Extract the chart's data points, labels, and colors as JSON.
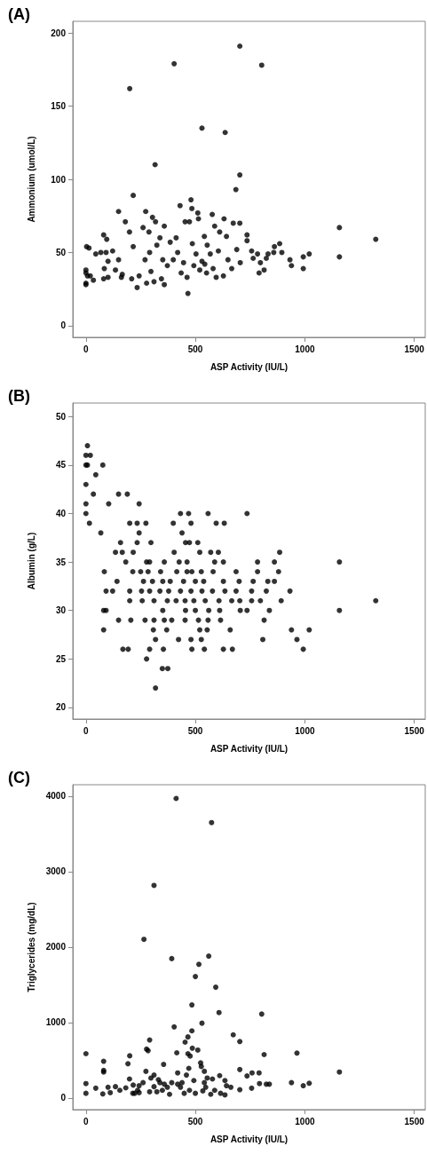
{
  "chart_data": [
    {
      "type": "scatter",
      "title": "(A)",
      "xlabel": "ASP Activity (IU/L)",
      "ylabel": "Ammonium (umol/L)",
      "color": "#000000",
      "marker": "circle",
      "grid": false,
      "xlim": [
        -60,
        1550
      ],
      "xticks": [
        0,
        500,
        1000,
        1500
      ],
      "ylim": [
        -8,
        208
      ],
      "yticks": [
        0,
        50,
        100,
        150,
        200
      ],
      "x": [
        0,
        0,
        0,
        0,
        7,
        3,
        14,
        20,
        34,
        45,
        68,
        81,
        84,
        81,
        95,
        92,
        101,
        101,
        122,
        135,
        149,
        149,
        162,
        166,
        180,
        199,
        200,
        216,
        216,
        209,
        234,
        243,
        261,
        273,
        277,
        270,
        288,
        291,
        297,
        304,
        316,
        318,
        311,
        324,
        338,
        345,
        351,
        358,
        358,
        372,
        385,
        403,
        399,
        412,
        419,
        430,
        435,
        446,
        453,
        462,
        466,
        473,
        480,
        484,
        486,
        493,
        503,
        511,
        514,
        520,
        530,
        530,
        541,
        543,
        551,
        554,
        568,
        577,
        581,
        588,
        595,
        605,
        611,
        628,
        631,
        636,
        642,
        649,
        666,
        673,
        685,
        689,
        703,
        703,
        703,
        705,
        736,
        736,
        757,
        764,
        784,
        791,
        797,
        803,
        814,
        824,
        832,
        858,
        861,
        885,
        895,
        932,
        939,
        993,
        993,
        1020,
        1158,
        1158,
        1324
      ],
      "values": [
        38,
        36,
        29,
        28,
        34,
        54,
        53,
        34,
        31,
        49,
        50,
        62,
        39,
        32,
        59,
        50,
        44,
        33,
        51,
        38,
        78,
        45,
        33,
        35,
        71,
        64,
        162,
        89,
        54,
        32,
        26,
        34,
        67,
        78,
        29,
        45,
        64,
        50,
        37,
        74,
        110,
        71,
        30,
        55,
        60,
        32,
        45,
        68,
        28,
        41,
        57,
        179,
        45,
        60,
        50,
        82,
        36,
        43,
        71,
        33,
        22,
        71,
        86,
        80,
        56,
        41,
        49,
        77,
        73,
        38,
        135,
        44,
        61,
        42,
        36,
        55,
        49,
        76,
        39,
        68,
        33,
        51,
        64,
        34,
        73,
        132,
        61,
        45,
        39,
        70,
        93,
        52,
        70,
        103,
        191,
        43,
        62,
        58,
        51,
        46,
        49,
        36,
        43,
        178,
        38,
        46,
        49,
        50,
        54,
        56,
        50,
        45,
        41,
        39,
        47,
        49,
        67,
        47,
        59
      ]
    },
    {
      "type": "scatter",
      "title": "(B)",
      "xlabel": "ASP Activity (IU/L)",
      "ylabel": "Albumin (g/L)",
      "color": "#000000",
      "marker": "circle",
      "grid": false,
      "xlim": [
        -60,
        1550
      ],
      "xticks": [
        0,
        500,
        1000,
        1500
      ],
      "ylim": [
        18.8,
        51.4
      ],
      "yticks": [
        20,
        25,
        30,
        35,
        40,
        45,
        50
      ],
      "x": [
        7,
        0,
        20,
        0,
        7,
        77,
        45,
        0,
        34,
        149,
        189,
        0,
        104,
        243,
        0,
        432,
        469,
        558,
        736,
        16,
        200,
        234,
        274,
        399,
        480,
        595,
        632,
        68,
        243,
        439,
        158,
        234,
        297,
        455,
        473,
        511,
        135,
        166,
        216,
        403,
        520,
        570,
        605,
        885,
        182,
        277,
        291,
        358,
        426,
        462,
        588,
        628,
        784,
        861,
        1158,
        84,
        214,
        250,
        284,
        341,
        415,
        462,
        484,
        527,
        581,
        686,
        784,
        880,
        142,
        263,
        304,
        351,
        385,
        446,
        500,
        538,
        628,
        700,
        764,
        831,
        861,
        92,
        122,
        200,
        254,
        291,
        338,
        378,
        432,
        480,
        530,
        578,
        635,
        686,
        757,
        824,
        932,
        200,
        257,
        311,
        372,
        412,
        453,
        493,
        545,
        608,
        666,
        703,
        757,
        797,
        892,
        1324,
        81,
        92,
        351,
        455,
        500,
        561,
        611,
        705,
        736,
        838,
        1158,
        149,
        205,
        270,
        311,
        358,
        392,
        453,
        514,
        558,
        615,
        814,
        81,
        308,
        369,
        520,
        554,
        659,
        939,
        1020,
        318,
        423,
        480,
        527,
        808,
        964,
        169,
        193,
        291,
        354,
        484,
        541,
        628,
        669,
        993,
        277,
        349,
        374,
        318
      ],
      "values": [
        47,
        46,
        46,
        45,
        45,
        45,
        44,
        43,
        42,
        42,
        42,
        41,
        41,
        41,
        40,
        40,
        40,
        40,
        40,
        39,
        39,
        39,
        39,
        39,
        39,
        39,
        39,
        38,
        38,
        38,
        37,
        37,
        37,
        37,
        37,
        37,
        36,
        36,
        36,
        36,
        36,
        36,
        36,
        36,
        35,
        35,
        35,
        35,
        35,
        35,
        35,
        35,
        35,
        35,
        35,
        34,
        34,
        34,
        34,
        34,
        34,
        34,
        34,
        34,
        34,
        34,
        34,
        34,
        33,
        33,
        33,
        33,
        33,
        33,
        33,
        33,
        33,
        33,
        33,
        33,
        33,
        32,
        32,
        32,
        32,
        32,
        32,
        32,
        32,
        32,
        32,
        32,
        32,
        32,
        32,
        32,
        32,
        31,
        31,
        31,
        31,
        31,
        31,
        31,
        31,
        31,
        31,
        31,
        31,
        31,
        31,
        31,
        30,
        30,
        30,
        30,
        30,
        30,
        30,
        30,
        30,
        30,
        30,
        29,
        29,
        29,
        29,
        29,
        29,
        29,
        29,
        29,
        29,
        29,
        28,
        28,
        28,
        28,
        28,
        28,
        28,
        28,
        27,
        27,
        27,
        27,
        27,
        27,
        26,
        26,
        26,
        26,
        26,
        26,
        26,
        26,
        26,
        25,
        24,
        24,
        22
      ]
    },
    {
      "type": "scatter",
      "title": "(C)",
      "xlabel": "ASP Activity (IU/L)",
      "ylabel": "Triglycerides (mg/dL)",
      "color": "#000000",
      "marker": "circle",
      "grid": false,
      "xlim": [
        -60,
        1550
      ],
      "xticks": [
        0,
        500,
        1000,
        1500
      ],
      "ylim": [
        -155,
        4150
      ],
      "yticks": [
        0,
        1000,
        2000,
        3000,
        4000
      ],
      "x": [
        0,
        0,
        0,
        45,
        77,
        81,
        81,
        81,
        101,
        111,
        135,
        155,
        182,
        192,
        200,
        199,
        214,
        216,
        236,
        243,
        261,
        265,
        274,
        277,
        284,
        291,
        291,
        297,
        311,
        311,
        324,
        331,
        355,
        358,
        372,
        382,
        392,
        403,
        412,
        415,
        419,
        419,
        432,
        453,
        459,
        466,
        466,
        470,
        476,
        484,
        484,
        486,
        500,
        511,
        516,
        524,
        527,
        530,
        534,
        541,
        554,
        561,
        574,
        578,
        593,
        608,
        611,
        615,
        635,
        642,
        673,
        703,
        703,
        703,
        736,
        757,
        759,
        791,
        793,
        803,
        814,
        824,
        838,
        939,
        964,
        993,
        1020,
        1158,
        223,
        243,
        311,
        338,
        349,
        392,
        439,
        449,
        473,
        493,
        500,
        541,
        547,
        570,
        588,
        635,
        662
      ],
      "values": [
        586,
        190,
        61,
        129,
        53,
        485,
        364,
        343,
        141,
        69,
        149,
        101,
        133,
        453,
        558,
        251,
        61,
        170,
        101,
        162,
        202,
        2101,
        352,
        646,
        626,
        768,
        81,
        263,
        2816,
        303,
        81,
        242,
        444,
        182,
        141,
        48,
        1846,
        941,
        3968,
        598,
        331,
        182,
        141,
        739,
        303,
        808,
        586,
        392,
        554,
        1232,
        889,
        659,
        1608,
        634,
        1770,
        465,
        416,
        990,
        93,
        352,
        263,
        1879,
        3648,
        251,
        1467,
        1131,
        295,
        61,
        40,
        162,
        836,
        747,
        376,
        109,
        291,
        129,
        331,
        331,
        190,
        1111,
        574,
        182,
        182,
        202,
        594,
        162,
        194,
        343,
        61,
        69,
        149,
        202,
        101,
        202,
        202,
        61,
        101,
        230,
        61,
        202,
        141,
        48,
        101,
        230,
        141
      ]
    }
  ]
}
